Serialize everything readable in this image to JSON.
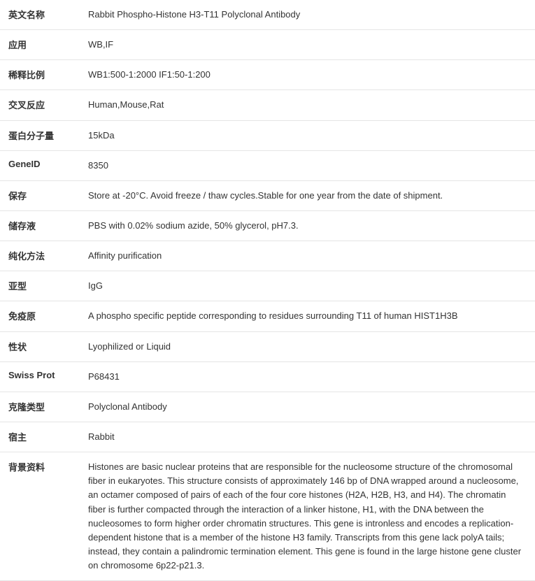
{
  "spec": {
    "rows": [
      {
        "label": "英文名称",
        "value": "Rabbit Phospho-Histone H3-T11 Polyclonal Antibody"
      },
      {
        "label": "应用",
        "value": "WB,IF"
      },
      {
        "label": "稀释比例",
        "value": "WB1:500-1:2000 IF1:50-1:200"
      },
      {
        "label": "交叉反应",
        "value": "Human,Mouse,Rat"
      },
      {
        "label": "蛋白分子量",
        "value": "15kDa"
      },
      {
        "label": "GeneID",
        "value": "8350"
      },
      {
        "label": "保存",
        "value": "Store at -20°C. Avoid freeze / thaw cycles.Stable for one year from the date of shipment."
      },
      {
        "label": "储存液",
        "value": "PBS with 0.02% sodium azide, 50% glycerol, pH7.3."
      },
      {
        "label": "纯化方法",
        "value": "Affinity purification"
      },
      {
        "label": "亚型",
        "value": "IgG"
      },
      {
        "label": "免疫原",
        "value": "A phospho specific peptide corresponding to residues surrounding T11 of human HIST1H3B"
      },
      {
        "label": "性状",
        "value": "Lyophilized or Liquid"
      },
      {
        "label": "Swiss Prot",
        "value": "P68431"
      },
      {
        "label": "克隆类型",
        "value": "Polyclonal Antibody"
      },
      {
        "label": "宿主",
        "value": "Rabbit"
      },
      {
        "label": "背景资料",
        "value": "Histones are basic nuclear proteins that are responsible for the nucleosome structure of the chromosomal fiber in eukaryotes. This structure consists of approximately 146 bp of DNA wrapped around a nucleosome, an octamer composed of pairs of each of the four core histones (H2A, H2B, H3, and H4). The chromatin fiber is further compacted through the interaction of a linker histone, H1, with the DNA between the nucleosomes to form higher order chromatin structures. This gene is intronless and encodes a replication-dependent histone that is a member of the histone H3 family. Transcripts from this gene lack polyA tails; instead, they contain a palindromic termination element. This gene is found in the large histone gene cluster on chromosome 6p22-p21.3."
      }
    ]
  }
}
